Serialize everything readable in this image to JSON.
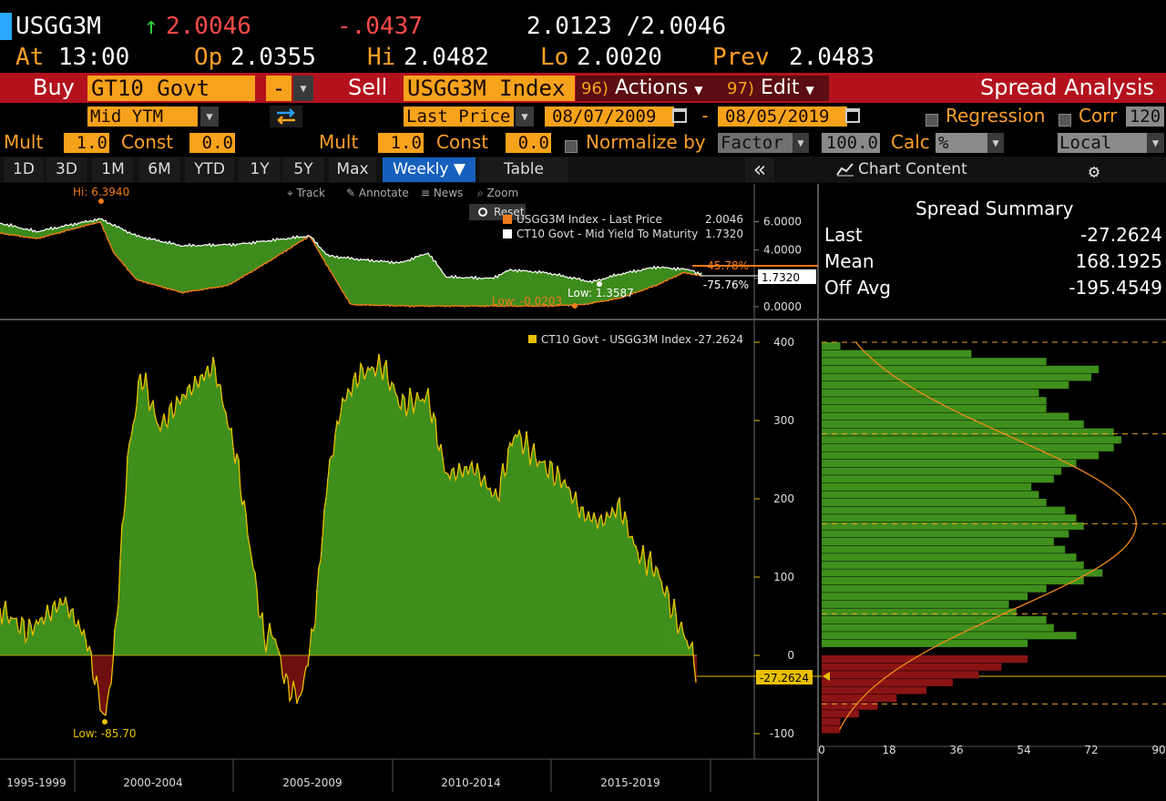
{
  "quote": {
    "ticker": "USGG3M",
    "last": "2.0046",
    "change": "-.0437",
    "bid_ask": "2.0123 /2.0046",
    "at_label": "At",
    "at_time": "13:00",
    "op_label": "Op",
    "op": "2.0355",
    "hi_label": "Hi",
    "hi": "2.0482",
    "lo_label": "Lo",
    "lo": "2.0020",
    "prev_label": "Prev",
    "prev": "2.0483",
    "up_arrow": "↑"
  },
  "order_bar": {
    "buy_label": "Buy",
    "buy_security": "GT10 Govt",
    "op_symbol": "-",
    "sell_label": "Sell",
    "sell_security": "USGG3M Index",
    "actions_num": "96)",
    "actions_label": "Actions",
    "edit_num": "97)",
    "edit_label": "Edit",
    "title": "Spread Analysis"
  },
  "params": {
    "buy_field": "Mid YTM",
    "sell_field": "Last Price",
    "start_date": "08/07/2009",
    "date_sep": "-",
    "end_date": "08/05/2019",
    "regression_label": "Regression",
    "corr_label": "Corr",
    "corr_value": "120",
    "mult_label": "Mult",
    "mult1": "1.0",
    "const_label": "Const",
    "const1": "0.0",
    "mult2": "1.0",
    "const2": "0.0",
    "normalize_label": "Normalize by",
    "normalize_value": "Factor",
    "factor_value": "100.0",
    "calc_label": "Calc",
    "calc_value": "%",
    "currency": "Local CCY"
  },
  "toolbar": {
    "periods": [
      "1D",
      "3D",
      "1M",
      "6M",
      "YTD",
      "1Y",
      "5Y",
      "Max"
    ],
    "frequency": "Weekly ▼",
    "table_label": "Table",
    "collapse_icon": "«",
    "chart_content_label": "Chart Content"
  },
  "chart_tools": {
    "track": "Track",
    "annotate": "Annotate",
    "news": "News",
    "zoom": "Zoom",
    "reset": "Reset"
  },
  "summary": {
    "title": "Spread Summary",
    "rows": [
      {
        "label": "Last",
        "value": "-27.2624"
      },
      {
        "label": "Mean",
        "value": "168.1925"
      },
      {
        "label": "Off Avg",
        "value": "-195.4549"
      }
    ]
  },
  "chart_data": [
    {
      "type": "line",
      "series": [
        {
          "name": "USGG3M Index - Last Price",
          "last": "2.0046",
          "color": "#f07a1a"
        },
        {
          "name": "CT10 Govt - Mid Yield To Maturity",
          "last": "1.7320",
          "color": "#ffffff"
        }
      ],
      "y_ticks": [
        "6.0000",
        "4.0000",
        "2.0000",
        "0.0000"
      ],
      "ylim": [
        0,
        7
      ],
      "annotations": {
        "hi": "Hi: 6.3940",
        "low": "Low: -0.0203",
        "low2": "Low: 1.3587",
        "pct1": "-45.78%",
        "pct2": "-75.76%",
        "last_tag": "1.7320"
      }
    },
    {
      "type": "area",
      "series": [
        {
          "name": "CT10 Govt - USGG3M Index",
          "last": "-27.2624",
          "color": "#e8c000"
        }
      ],
      "y_ticks": [
        "400",
        "300",
        "200",
        "100",
        "0",
        "-100"
      ],
      "ylim": [
        -115,
        400
      ],
      "x_periods": [
        "1995-1999",
        "2000-2004",
        "2005-2009",
        "2010-2014",
        "2015-2019"
      ],
      "annotations": {
        "low": "Low: -85.70",
        "last_tag": "-27.2624"
      }
    },
    {
      "type": "bar",
      "orientation": "horizontal",
      "x_ticks": [
        "0",
        "18",
        "36",
        "54",
        "72",
        "90"
      ],
      "xlim": [
        0,
        90
      ],
      "bins_lower_edge": [
        -100,
        -90,
        -80,
        -70,
        -60,
        -50,
        -40,
        -30,
        -20,
        -10,
        0,
        10,
        20,
        30,
        40,
        50,
        60,
        70,
        80,
        90,
        100,
        110,
        120,
        130,
        140,
        150,
        160,
        170,
        180,
        190,
        200,
        210,
        220,
        230,
        240,
        250,
        260,
        270,
        280,
        290,
        300,
        310,
        320,
        330,
        340,
        350,
        360,
        370,
        380,
        390
      ],
      "counts": [
        5,
        5,
        10,
        15,
        20,
        28,
        35,
        42,
        48,
        55,
        0,
        55,
        68,
        62,
        60,
        52,
        50,
        55,
        60,
        70,
        75,
        70,
        68,
        65,
        62,
        66,
        70,
        68,
        65,
        60,
        58,
        56,
        62,
        64,
        68,
        74,
        78,
        80,
        78,
        70,
        66,
        60,
        60,
        58,
        66,
        72,
        74,
        60,
        40,
        5
      ]
    }
  ]
}
